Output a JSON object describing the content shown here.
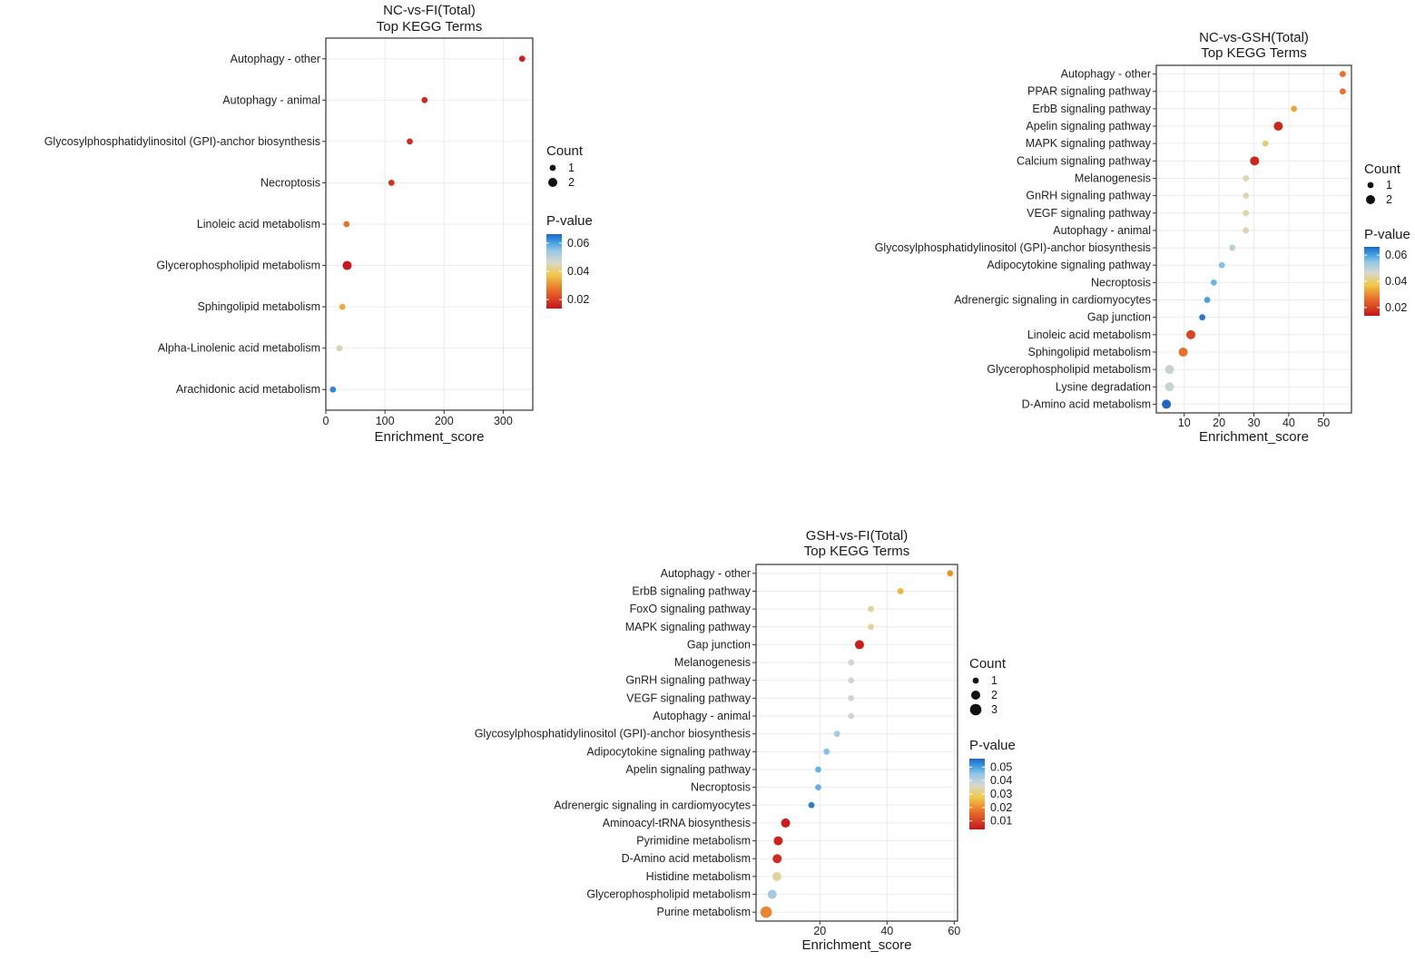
{
  "chart_data": [
    {
      "type": "scatter",
      "title": "NC-vs-FI(Total)",
      "subtitle": "Top KEGG Terms",
      "xlabel": "Enrichment_score",
      "ylabel": "",
      "xlim": [
        0,
        350
      ],
      "xticks": [
        0,
        100,
        200,
        300
      ],
      "size_legend_title": "Count",
      "size_levels": [
        1,
        2
      ],
      "color_legend_title": "P-value",
      "color_ticks": [
        "0.06",
        "0.04",
        "0.02"
      ],
      "pvalue_range": [
        0.01,
        0.07
      ],
      "terms": [
        "Autophagy - other",
        "Autophagy - animal",
        "Glycosylphosphatidylinositol (GPI)-anchor biosynthesis",
        "Necroptosis",
        "Linoleic acid metabolism",
        "Glycerophospholipid metabolism",
        "Sphingolipid metabolism",
        "Alpha-Linolenic acid metabolism",
        "Arachidonic acid metabolism"
      ],
      "x": [
        332,
        167,
        142,
        111,
        35,
        36,
        28,
        23,
        12
      ],
      "count": [
        1,
        1,
        1,
        1,
        1,
        2,
        1,
        1,
        1
      ],
      "pvalue": [
        0.012,
        0.014,
        0.014,
        0.015,
        0.025,
        0.01,
        0.033,
        0.045,
        0.066
      ]
    },
    {
      "type": "scatter",
      "title": "NC-vs-GSH(Total)",
      "subtitle": "Top KEGG Terms",
      "xlabel": "Enrichment_score",
      "ylabel": "",
      "xlim": [
        2,
        58
      ],
      "xticks": [
        10,
        20,
        30,
        40,
        50
      ],
      "size_legend_title": "Count",
      "size_levels": [
        1,
        2
      ],
      "color_legend_title": "P-value",
      "color_ticks": [
        "0.06",
        "0.04",
        "0.02"
      ],
      "pvalue_range": [
        0.005,
        0.065
      ],
      "terms": [
        "Autophagy - other",
        "PPAR signaling pathway",
        "ErbB signaling pathway",
        "Apelin signaling pathway",
        "MAPK signaling pathway",
        "Calcium signaling pathway",
        "Melanogenesis",
        "GnRH signaling pathway",
        "VEGF signaling pathway",
        "Autophagy - animal",
        "Glycosylphosphatidylinositol (GPI)-anchor biosynthesis",
        "Adipocytokine signaling pathway",
        "Necroptosis",
        "Adrenergic signaling in cardiomyocytes",
        "Gap junction",
        "Linoleic acid metabolism",
        "Sphingolipid metabolism",
        "Glycerophospholipid metabolism",
        "Lysine degradation",
        "D-Amino acid metabolism"
      ],
      "x": [
        55.5,
        55.5,
        41.5,
        37,
        33.3,
        30.2,
        27.7,
        27.7,
        27.7,
        27.7,
        23.8,
        20.8,
        18.5,
        16.6,
        15.2,
        11.9,
        9.7,
        5.8,
        5.8,
        4.9
      ],
      "count": [
        1,
        1,
        1,
        2,
        1,
        2,
        1,
        1,
        1,
        1,
        1,
        1,
        1,
        1,
        1,
        2,
        2,
        2,
        2,
        2
      ],
      "pvalue": [
        0.02,
        0.02,
        0.027,
        0.008,
        0.035,
        0.008,
        0.04,
        0.04,
        0.04,
        0.04,
        0.047,
        0.053,
        0.055,
        0.058,
        0.063,
        0.013,
        0.02,
        0.045,
        0.045,
        0.065
      ]
    },
    {
      "type": "scatter",
      "title": "GSH-vs-FI(Total)",
      "subtitle": "Top KEGG Terms",
      "xlabel": "Enrichment_score",
      "ylabel": "",
      "xlim": [
        1,
        61
      ],
      "xticks": [
        20,
        40,
        60
      ],
      "size_legend_title": "Count",
      "size_levels": [
        1,
        2,
        3
      ],
      "color_legend_title": "P-value",
      "color_ticks": [
        "0.05",
        "0.04",
        "0.03",
        "0.02",
        "0.01"
      ],
      "pvalue_range": [
        0.005,
        0.055
      ],
      "terms": [
        "Autophagy - other",
        "ErbB signaling pathway",
        "FoxO signaling pathway",
        "MAPK signaling pathway",
        "Gap junction",
        "Melanogenesis",
        "GnRH signaling pathway",
        "VEGF signaling pathway",
        "Autophagy - animal",
        "Glycosylphosphatidylinositol (GPI)-anchor biosynthesis",
        "Adipocytokine signaling pathway",
        "Apelin signaling pathway",
        "Necroptosis",
        "Adrenergic signaling in cardiomyocytes",
        "Aminoacyl-tRNA biosynthesis",
        "Pyrimidine metabolism",
        "D-Amino acid metabolism",
        "Histidine metabolism",
        "Glycerophospholipid metabolism",
        "Purine metabolism"
      ],
      "x": [
        58.8,
        44,
        35.2,
        35.2,
        31.8,
        29.3,
        29.3,
        29.3,
        29.3,
        25.1,
        22,
        19.5,
        19.5,
        17.5,
        9.8,
        7.6,
        7.3,
        7.2,
        5.8,
        4
      ],
      "count": [
        1,
        1,
        1,
        1,
        2,
        1,
        1,
        1,
        1,
        1,
        1,
        1,
        1,
        1,
        2,
        2,
        2,
        2,
        2,
        3
      ],
      "pvalue": [
        0.021,
        0.025,
        0.033,
        0.033,
        0.006,
        0.037,
        0.037,
        0.037,
        0.037,
        0.042,
        0.045,
        0.047,
        0.047,
        0.053,
        0.006,
        0.007,
        0.008,
        0.033,
        0.042,
        0.02
      ]
    }
  ]
}
